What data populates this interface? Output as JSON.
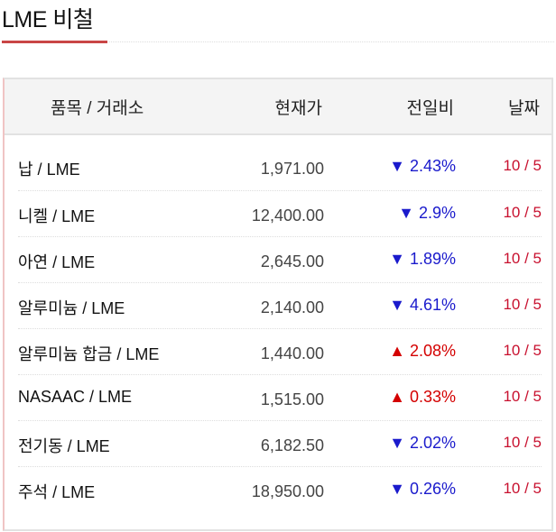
{
  "title": "LME 비철",
  "headers": {
    "item": "품목 / 거래소",
    "price": "현재가",
    "change": "전일비",
    "date": "날짜"
  },
  "colors": {
    "down": "#1a1acc",
    "up": "#d40000",
    "date": "#c8102e",
    "accent": "#c94545"
  },
  "rows": [
    {
      "name": "납 / LME",
      "price": "1,971.00",
      "change": "▼ 2.43%",
      "dir": "down",
      "date": "10 / 5"
    },
    {
      "name": "니켈 / LME",
      "price": "12,400.00",
      "change": "▼ 2.9%",
      "dir": "down",
      "date": "10 / 5"
    },
    {
      "name": "아연 / LME",
      "price": "2,645.00",
      "change": "▼ 1.89%",
      "dir": "down",
      "date": "10 / 5"
    },
    {
      "name": "알루미늄 / LME",
      "price": "2,140.00",
      "change": "▼ 4.61%",
      "dir": "down",
      "date": "10 / 5"
    },
    {
      "name": "알루미늄 합금 / LME",
      "price": "1,440.00",
      "change": "▲ 2.08%",
      "dir": "up",
      "date": "10 / 5"
    },
    {
      "name": "NASAAC / LME",
      "price": "1,515.00",
      "change": "▲ 0.33%",
      "dir": "up",
      "date": "10 / 5"
    },
    {
      "name": "전기동 / LME",
      "price": "6,182.50",
      "change": "▼ 2.02%",
      "dir": "down",
      "date": "10 / 5"
    },
    {
      "name": "주석 / LME",
      "price": "18,950.00",
      "change": "▼ 0.26%",
      "dir": "down",
      "date": "10 / 5"
    }
  ]
}
